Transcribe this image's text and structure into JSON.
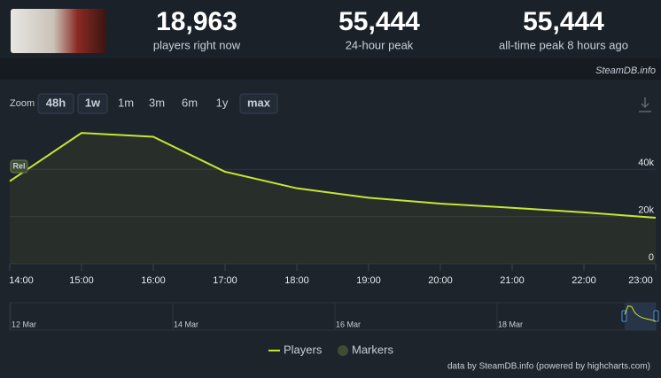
{
  "header": {
    "stats": [
      {
        "value": "18,963",
        "label": "players right now"
      },
      {
        "value": "55,444",
        "label": "24-hour peak"
      },
      {
        "value": "55,444",
        "label": "all-time peak 8 hours ago"
      }
    ],
    "credit": "SteamDB.info"
  },
  "zoom": {
    "label": "Zoom",
    "buttons": [
      "48h",
      "1w",
      "1m",
      "3m",
      "6m",
      "1y",
      "max"
    ],
    "active": [
      "48h",
      "1w",
      "max"
    ]
  },
  "chart_data": {
    "type": "line",
    "categories": [
      "14:00",
      "15:00",
      "16:00",
      "17:00",
      "18:00",
      "19:00",
      "20:00",
      "21:00",
      "22:00",
      "23:00"
    ],
    "series": [
      {
        "name": "Players",
        "color": "#c6e634",
        "values": [
          35000,
          55444,
          53800,
          39000,
          32000,
          28000,
          25500,
          23700,
          21800,
          19500
        ]
      }
    ],
    "markers": {
      "name": "Markers",
      "color": "#3f4d33",
      "annotations": [
        {
          "label": "Rel",
          "x": "14:00"
        }
      ]
    },
    "ylim": [
      0,
      63000
    ],
    "yticks": [
      0,
      {
        "value": 20000,
        "label": "20k"
      },
      {
        "value": 40000,
        "label": "40k"
      }
    ],
    "grid": true,
    "navigator_labels": [
      "12 Mar",
      "14 Mar",
      "16 Mar",
      "18 Mar"
    ]
  },
  "footer": "data by SteamDB.info (powered by highcharts.com)"
}
